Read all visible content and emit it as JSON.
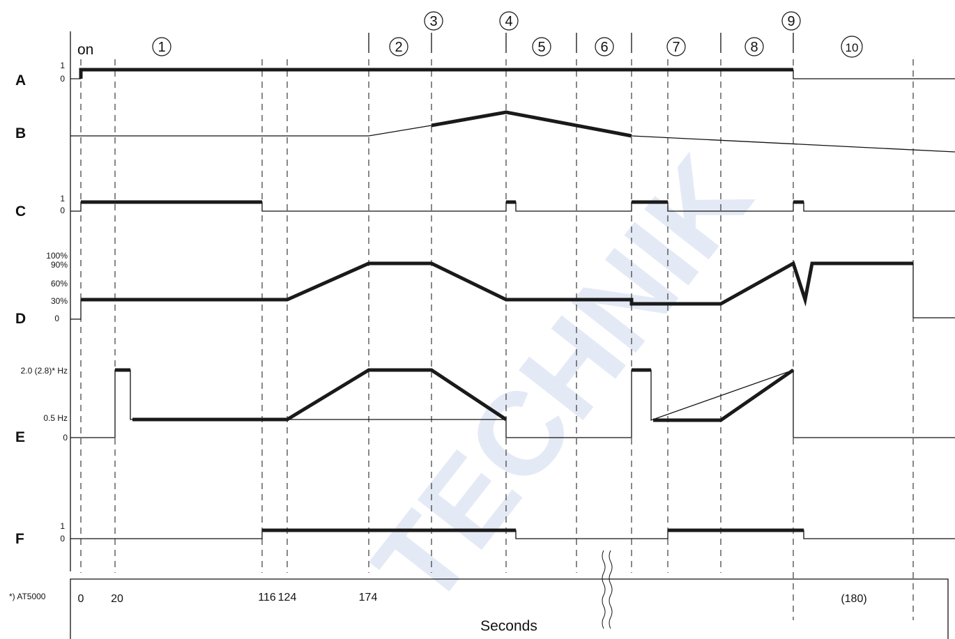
{
  "watermark": "TECHNIK",
  "on_label": "on",
  "phases": [
    "1",
    "2",
    "3",
    "4",
    "5",
    "6",
    "7",
    "8",
    "9",
    "10"
  ],
  "rows": {
    "A": {
      "label": "A",
      "levels": [
        "1",
        "0"
      ]
    },
    "B": {
      "label": "B"
    },
    "C": {
      "label": "C",
      "levels": [
        "1",
        "0"
      ]
    },
    "D": {
      "label": "D",
      "levels": [
        "100%",
        "90%",
        "60%",
        "30%",
        "0"
      ]
    },
    "E": {
      "label": "E",
      "levels": [
        "2.0 (2.8)* Hz",
        "0.5 Hz",
        "0"
      ]
    },
    "F": {
      "label": "F",
      "levels": [
        "1",
        "0"
      ]
    }
  },
  "time_axis": {
    "ticks": [
      "0",
      "20",
      "116",
      "124",
      "174",
      "(180)"
    ],
    "title": "Seconds",
    "footnote": "*) AT5000"
  },
  "colors": {
    "ink": "#111111",
    "signal": "#1a1a1a",
    "watermark": "#cfd9ee"
  }
}
